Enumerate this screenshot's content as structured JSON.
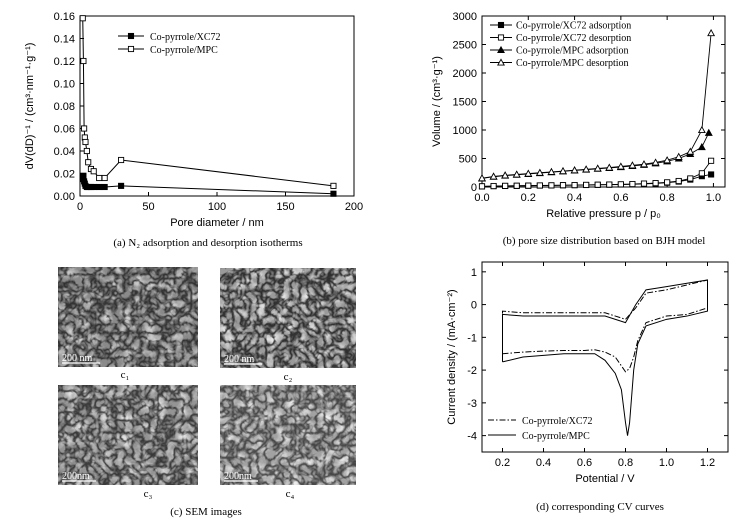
{
  "chart_data": [
    {
      "id": "a",
      "type": "line",
      "caption": "(a) N₂ adsorption and desorption isotherms",
      "xlabel": "Pore diameter / nm",
      "ylabel": "dV(dD)⁻¹ / (cm³·nm⁻¹·g⁻¹)",
      "xlim": [
        0,
        200
      ],
      "ylim": [
        0,
        0.16
      ],
      "xticks": [
        0,
        50,
        100,
        150,
        200
      ],
      "yticks": [
        0.0,
        0.02,
        0.04,
        0.06,
        0.08,
        0.1,
        0.12,
        0.14,
        0.16
      ],
      "legend_position": "top-right",
      "series": [
        {
          "name": "Co-pyrrole/XC72",
          "marker": "filled-square",
          "x": [
            2,
            2.5,
            3,
            3.5,
            4,
            5,
            6,
            8,
            10,
            14,
            18,
            30,
            185
          ],
          "y": [
            0.015,
            0.018,
            0.013,
            0.011,
            0.009,
            0.008,
            0.008,
            0.008,
            0.008,
            0.008,
            0.008,
            0.009,
            0.002
          ]
        },
        {
          "name": "Co-pyrrole/MPC",
          "marker": "open-square",
          "x": [
            2,
            2.5,
            3,
            3.5,
            4,
            5,
            6,
            8,
            10,
            14,
            18,
            30,
            185
          ],
          "y": [
            0.158,
            0.12,
            0.06,
            0.052,
            0.048,
            0.04,
            0.03,
            0.024,
            0.022,
            0.016,
            0.016,
            0.032,
            0.009
          ]
        }
      ]
    },
    {
      "id": "b",
      "type": "line",
      "caption": "(b) pore size distribution based on BJH model",
      "xlabel": "Relative pressure p / p₀",
      "ylabel": "Volume / (cm³·g⁻¹)",
      "xlim": [
        0,
        1.05
      ],
      "ylim": [
        0,
        3000
      ],
      "xticks": [
        0.0,
        0.2,
        0.4,
        0.6,
        0.8,
        1.0
      ],
      "yticks": [
        0,
        500,
        1000,
        1500,
        2000,
        2500,
        3000
      ],
      "legend_position": "top-left",
      "series": [
        {
          "name": "Co-pyrrole/XC72 adsorption",
          "marker": "filled-square",
          "x": [
            0.0,
            0.05,
            0.1,
            0.15,
            0.2,
            0.25,
            0.3,
            0.35,
            0.4,
            0.45,
            0.5,
            0.55,
            0.6,
            0.65,
            0.7,
            0.75,
            0.8,
            0.85,
            0.9,
            0.95,
            0.99
          ],
          "y": [
            10,
            15,
            18,
            20,
            22,
            25,
            27,
            30,
            32,
            35,
            38,
            40,
            44,
            48,
            55,
            62,
            75,
            95,
            130,
            190,
            220
          ]
        },
        {
          "name": "Co-pyrrole/XC72 desorption",
          "marker": "open-square",
          "x": [
            0.0,
            0.05,
            0.1,
            0.15,
            0.2,
            0.25,
            0.3,
            0.35,
            0.4,
            0.45,
            0.5,
            0.55,
            0.6,
            0.65,
            0.7,
            0.75,
            0.8,
            0.85,
            0.9,
            0.95,
            0.99
          ],
          "y": [
            12,
            17,
            20,
            22,
            24,
            27,
            29,
            32,
            34,
            37,
            40,
            43,
            47,
            52,
            60,
            68,
            82,
            105,
            150,
            240,
            460
          ]
        },
        {
          "name": "Co-pyrrole/MPC adsorption",
          "marker": "filled-triangle",
          "x": [
            0.0,
            0.05,
            0.1,
            0.15,
            0.2,
            0.25,
            0.3,
            0.35,
            0.4,
            0.45,
            0.5,
            0.55,
            0.6,
            0.65,
            0.7,
            0.75,
            0.8,
            0.85,
            0.9,
            0.95,
            0.98
          ],
          "y": [
            150,
            180,
            200,
            215,
            230,
            245,
            260,
            275,
            290,
            305,
            320,
            335,
            350,
            370,
            390,
            415,
            450,
            500,
            580,
            700,
            950
          ]
        },
        {
          "name": "Co-pyrrole/MPC desorption",
          "marker": "open-triangle",
          "x": [
            0.0,
            0.05,
            0.1,
            0.15,
            0.2,
            0.25,
            0.3,
            0.35,
            0.4,
            0.45,
            0.5,
            0.55,
            0.6,
            0.65,
            0.7,
            0.75,
            0.8,
            0.85,
            0.9,
            0.95,
            0.99
          ],
          "y": [
            155,
            185,
            205,
            220,
            235,
            250,
            265,
            280,
            295,
            310,
            325,
            340,
            360,
            380,
            400,
            430,
            470,
            530,
            620,
            1000,
            2700
          ]
        }
      ]
    },
    {
      "id": "d",
      "type": "line",
      "caption": "(d) corresponding CV curves",
      "xlabel": "Potential / V",
      "ylabel": "Current density / (mA·cm⁻²)",
      "xlim": [
        0.1,
        1.3
      ],
      "ylim": [
        -4.5,
        1.3
      ],
      "xticks": [
        0.2,
        0.4,
        0.6,
        0.8,
        1.0,
        1.2
      ],
      "yticks": [
        1,
        0,
        -1,
        -2,
        -3,
        -4
      ],
      "legend_position": "bottom-left",
      "series": [
        {
          "name": "Co-pyrrole/XC72",
          "style": "dash-dot",
          "x": [
            0.2,
            0.3,
            0.4,
            0.5,
            0.6,
            0.65,
            0.7,
            0.75,
            0.8,
            0.82,
            0.84,
            0.86,
            0.9,
            1.0,
            1.1,
            1.2,
            1.2,
            1.1,
            1.0,
            0.95,
            0.9,
            0.85,
            0.8,
            0.7,
            0.6,
            0.5,
            0.4,
            0.3,
            0.2,
            0.2
          ],
          "y": [
            -1.5,
            -1.45,
            -1.42,
            -1.4,
            -1.4,
            -1.38,
            -1.45,
            -1.6,
            -2.05,
            -1.95,
            -1.6,
            -1.1,
            -0.55,
            -0.35,
            -0.3,
            -0.1,
            0.75,
            0.6,
            0.45,
            0.4,
            0.35,
            -0.1,
            -0.45,
            -0.25,
            -0.25,
            -0.25,
            -0.25,
            -0.25,
            -0.2,
            -1.5
          ]
        },
        {
          "name": "Co-pyrrole/MPC",
          "style": "solid",
          "x": [
            0.2,
            0.3,
            0.4,
            0.5,
            0.6,
            0.65,
            0.7,
            0.75,
            0.78,
            0.8,
            0.81,
            0.82,
            0.84,
            0.86,
            0.9,
            1.0,
            1.1,
            1.2,
            1.2,
            1.1,
            1.0,
            0.95,
            0.9,
            0.85,
            0.8,
            0.7,
            0.6,
            0.5,
            0.4,
            0.3,
            0.2,
            0.2
          ],
          "y": [
            -1.75,
            -1.6,
            -1.55,
            -1.5,
            -1.5,
            -1.5,
            -1.7,
            -2.1,
            -2.6,
            -3.6,
            -4.0,
            -3.6,
            -2.0,
            -1.2,
            -0.65,
            -0.45,
            -0.35,
            -0.2,
            0.75,
            0.65,
            0.55,
            0.5,
            0.45,
            0.0,
            -0.55,
            -0.35,
            -0.35,
            -0.35,
            -0.35,
            -0.35,
            -0.3,
            -1.75
          ]
        }
      ]
    }
  ],
  "sem": {
    "caption": "(c) SEM images",
    "panels": [
      {
        "label": "c₁",
        "scale": "200 nm"
      },
      {
        "label": "c₂",
        "scale": "200 nm"
      },
      {
        "label": "c₃",
        "scale": "200nm"
      },
      {
        "label": "c₄",
        "scale": "200nm"
      }
    ]
  }
}
